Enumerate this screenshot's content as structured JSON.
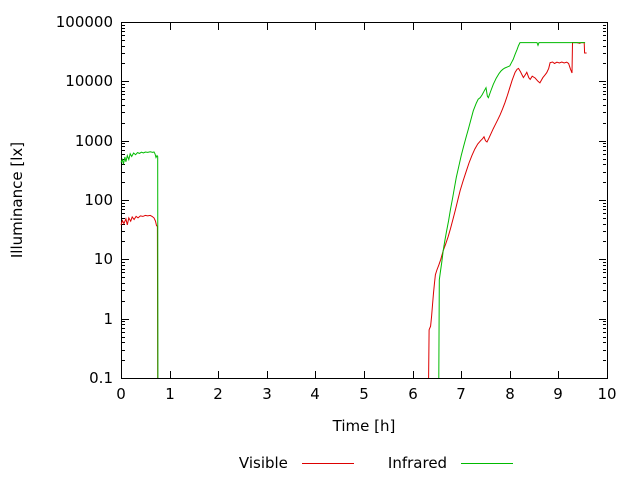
{
  "chart_data": {
    "type": "line",
    "title": "",
    "xlabel": "Time [h]",
    "ylabel": "Illuminance [lx]",
    "x_range": [
      0,
      10
    ],
    "y_range": [
      0.1,
      100000
    ],
    "y_scale": "log",
    "grid": false,
    "legend_position": "bottom-center",
    "x_ticks": [
      0,
      1,
      2,
      3,
      4,
      5,
      6,
      7,
      8,
      9,
      10
    ],
    "y_ticks": [
      0.1,
      1,
      10,
      100,
      1000,
      10000,
      100000
    ],
    "y_tick_labels": [
      "0.1",
      "1",
      "10",
      "100",
      "1000",
      "10000",
      "100000"
    ],
    "axis_color": "#000000",
    "series": [
      {
        "name": "Visible",
        "color": "#dd0000",
        "segments": [
          [
            [
              0,
              38
            ],
            [
              0.03,
              45
            ],
            [
              0.06,
              40
            ],
            [
              0.1,
              48
            ],
            [
              0.13,
              38
            ],
            [
              0.16,
              50
            ],
            [
              0.2,
              44
            ],
            [
              0.23,
              52
            ],
            [
              0.27,
              47
            ],
            [
              0.31,
              53
            ],
            [
              0.35,
              50
            ],
            [
              0.4,
              54
            ],
            [
              0.45,
              53
            ],
            [
              0.5,
              55
            ],
            [
              0.55,
              54
            ],
            [
              0.6,
              55
            ],
            [
              0.64,
              53
            ],
            [
              0.68,
              50
            ],
            [
              0.71,
              44
            ],
            [
              0.73,
              37
            ],
            [
              0.75,
              36
            ],
            [
              0.755,
              0.1
            ]
          ],
          [
            [
              6.33,
              0.1
            ],
            [
              6.34,
              0.65
            ],
            [
              6.37,
              0.75
            ],
            [
              6.39,
              1.1
            ],
            [
              6.41,
              1.7
            ],
            [
              6.43,
              2.7
            ],
            [
              6.45,
              4.0
            ],
            [
              6.47,
              5.5
            ],
            [
              6.5,
              6.6
            ],
            [
              6.54,
              8.0
            ],
            [
              6.58,
              10
            ],
            [
              6.63,
              14
            ],
            [
              6.68,
              18
            ],
            [
              6.73,
              24
            ],
            [
              6.78,
              33
            ],
            [
              6.83,
              47
            ],
            [
              6.88,
              68
            ],
            [
              6.93,
              100
            ],
            [
              6.98,
              145
            ],
            [
              7.04,
              210
            ],
            [
              7.1,
              300
            ],
            [
              7.16,
              420
            ],
            [
              7.22,
              560
            ],
            [
              7.28,
              720
            ],
            [
              7.34,
              880
            ],
            [
              7.4,
              1000
            ],
            [
              7.44,
              1080
            ],
            [
              7.47,
              1160
            ],
            [
              7.5,
              1000
            ],
            [
              7.53,
              950
            ],
            [
              7.57,
              1100
            ],
            [
              7.62,
              1350
            ],
            [
              7.66,
              1600
            ],
            [
              7.7,
              1850
            ],
            [
              7.75,
              2250
            ],
            [
              7.8,
              2730
            ],
            [
              7.85,
              3400
            ],
            [
              7.9,
              4350
            ],
            [
              7.95,
              5800
            ],
            [
              8.0,
              7800
            ],
            [
              8.05,
              10500
            ],
            [
              8.11,
              14200
            ],
            [
              8.15,
              16000
            ],
            [
              8.18,
              16500
            ],
            [
              8.22,
              14500
            ],
            [
              8.26,
              12500
            ],
            [
              8.28,
              11600
            ],
            [
              8.32,
              13000
            ],
            [
              8.35,
              14200
            ],
            [
              8.39,
              11500
            ],
            [
              8.42,
              10800
            ],
            [
              8.46,
              12200
            ],
            [
              8.52,
              11400
            ],
            [
              8.58,
              10000
            ],
            [
              8.62,
              9400
            ],
            [
              8.68,
              11500
            ],
            [
              8.73,
              13000
            ],
            [
              8.76,
              14000
            ],
            [
              8.8,
              16500
            ],
            [
              8.83,
              20600
            ],
            [
              8.88,
              21200
            ],
            [
              8.92,
              20000
            ],
            [
              8.97,
              21000
            ],
            [
              9.02,
              20400
            ],
            [
              9.07,
              21200
            ],
            [
              9.12,
              20400
            ],
            [
              9.17,
              21000
            ],
            [
              9.21,
              20000
            ],
            [
              9.25,
              16000
            ],
            [
              9.28,
              13800
            ],
            [
              9.29,
              45000
            ],
            [
              9.38,
              45000
            ],
            [
              9.44,
              43500
            ],
            [
              9.47,
              45000
            ],
            [
              9.53,
              45000
            ],
            [
              9.54,
              30000
            ],
            [
              9.58,
              30000
            ]
          ]
        ]
      },
      {
        "name": "Infrared",
        "color": "#00ba00",
        "segments": [
          [
            [
              0,
              430
            ],
            [
              0.03,
              480
            ],
            [
              0.05,
              400
            ],
            [
              0.08,
              530
            ],
            [
              0.1,
              440
            ],
            [
              0.13,
              560
            ],
            [
              0.16,
              480
            ],
            [
              0.19,
              600
            ],
            [
              0.22,
              540
            ],
            [
              0.26,
              620
            ],
            [
              0.3,
              580
            ],
            [
              0.34,
              630
            ],
            [
              0.38,
              610
            ],
            [
              0.42,
              640
            ],
            [
              0.46,
              620
            ],
            [
              0.5,
              645
            ],
            [
              0.55,
              635
            ],
            [
              0.6,
              650
            ],
            [
              0.65,
              635
            ],
            [
              0.68,
              645
            ],
            [
              0.7,
              600
            ],
            [
              0.72,
              520
            ],
            [
              0.74,
              560
            ],
            [
              0.755,
              540
            ],
            [
              0.76,
              0.1
            ]
          ],
          [
            [
              6.54,
              0.1
            ],
            [
              6.55,
              4.5
            ],
            [
              6.57,
              6
            ],
            [
              6.6,
              9
            ],
            [
              6.63,
              14
            ],
            [
              6.66,
              20
            ],
            [
              6.7,
              30
            ],
            [
              6.74,
              45
            ],
            [
              6.78,
              70
            ],
            [
              6.82,
              105
            ],
            [
              6.86,
              160
            ],
            [
              6.9,
              240
            ],
            [
              6.95,
              370
            ],
            [
              7.0,
              560
            ],
            [
              7.05,
              800
            ],
            [
              7.1,
              1150
            ],
            [
              7.15,
              1600
            ],
            [
              7.19,
              2100
            ],
            [
              7.25,
              3200
            ],
            [
              7.31,
              4300
            ],
            [
              7.35,
              5000
            ],
            [
              7.39,
              5300
            ],
            [
              7.43,
              5900
            ],
            [
              7.47,
              6800
            ],
            [
              7.51,
              7800
            ],
            [
              7.54,
              5600
            ],
            [
              7.56,
              5300
            ],
            [
              7.6,
              6600
            ],
            [
              7.66,
              8900
            ],
            [
              7.72,
              11300
            ],
            [
              7.78,
              13600
            ],
            [
              7.82,
              15000
            ],
            [
              7.86,
              16000
            ],
            [
              7.9,
              16800
            ],
            [
              7.95,
              17500
            ],
            [
              8.0,
              18200
            ],
            [
              8.04,
              21000
            ],
            [
              8.07,
              23400
            ],
            [
              8.11,
              28500
            ],
            [
              8.15,
              34500
            ],
            [
              8.18,
              40000
            ],
            [
              8.21,
              45000
            ],
            [
              8.4,
              45000
            ],
            [
              8.56,
              45000
            ],
            [
              8.58,
              40500
            ],
            [
              8.6,
              45000
            ],
            [
              8.8,
              45000
            ],
            [
              9.0,
              45000
            ],
            [
              9.2,
              45000
            ],
            [
              9.4,
              45000
            ],
            [
              9.55,
              45000
            ]
          ]
        ]
      }
    ]
  }
}
